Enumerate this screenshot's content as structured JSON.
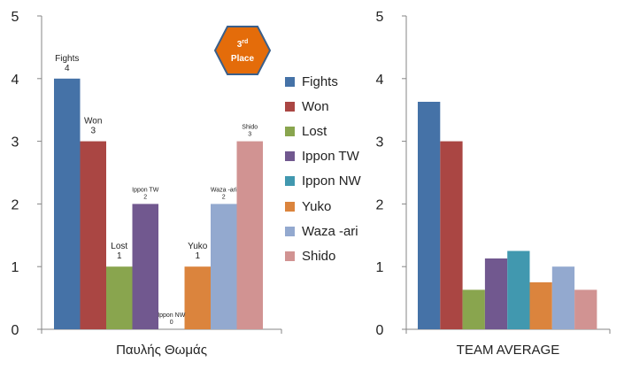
{
  "badge": {
    "sup": "rd",
    "line1": "3",
    "line2": "Place",
    "fill": "#e46c0a",
    "stroke": "#3a5f8a"
  },
  "legend": {
    "items": [
      {
        "label": "Fights",
        "color": "#4572a7"
      },
      {
        "label": "Won",
        "color": "#aa4643"
      },
      {
        "label": "Lost",
        "color": "#89a54e"
      },
      {
        "label": "Ippon TW",
        "color": "#71588f"
      },
      {
        "label": "Ippon NW",
        "color": "#4198af"
      },
      {
        "label": "Yuko",
        "color": "#db843d"
      },
      {
        "label": "Waza -ari",
        "color": "#93a9cf"
      },
      {
        "label": "Shido",
        "color": "#d19392"
      }
    ]
  },
  "chart_data": [
    {
      "type": "bar",
      "xlabel": "Παυλής Θωμάς",
      "ylim": [
        0,
        5
      ],
      "yticks": [
        0,
        1,
        2,
        3,
        4,
        5
      ],
      "grid": false,
      "legend": "right",
      "categories": [
        "Fights",
        "Won",
        "Lost",
        "Ippon TW",
        "Ippon NW",
        "Yuko",
        "Waza -ari",
        "Shido"
      ],
      "values": [
        4,
        3,
        1,
        2,
        0,
        1,
        2,
        3
      ],
      "data_labels": [
        {
          "name": "Fights",
          "value": "4"
        },
        {
          "name": "Won",
          "value": "3"
        },
        {
          "name": "Lost",
          "value": "1"
        },
        {
          "name": "Ippon TW",
          "value": "2"
        },
        {
          "name": "Ippon NW",
          "value": "0"
        },
        {
          "name": "Yuko",
          "value": "1"
        },
        {
          "name": "Waza -ari",
          "value": "2"
        },
        {
          "name": "Shido",
          "value": "3"
        }
      ]
    },
    {
      "type": "bar",
      "xlabel": "TEAM AVERAGE",
      "ylim": [
        0,
        5
      ],
      "yticks": [
        0,
        1,
        2,
        3,
        4,
        5
      ],
      "grid": false,
      "categories": [
        "Fights",
        "Won",
        "Lost",
        "Ippon TW",
        "Ippon NW",
        "Yuko",
        "Waza -ari",
        "Shido"
      ],
      "values": [
        3.63,
        3.0,
        0.63,
        1.13,
        1.25,
        0.75,
        1.0,
        0.63
      ]
    }
  ]
}
